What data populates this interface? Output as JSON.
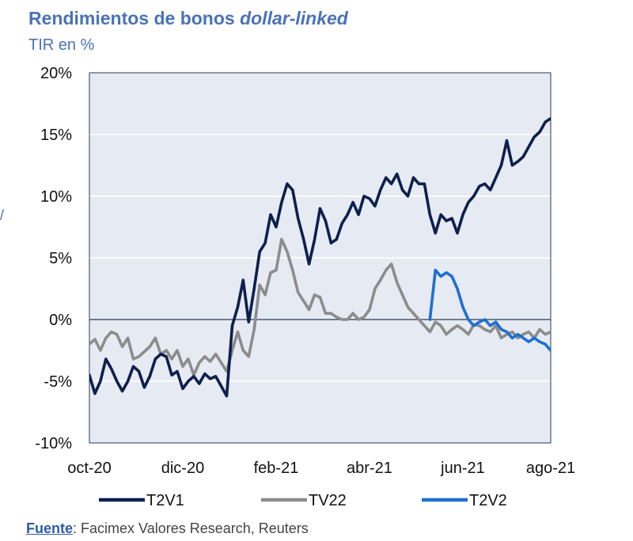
{
  "header": {
    "title_main": "Rendimientos de bonos ",
    "title_italic": "dollar-linked",
    "subtitle": "TIR en %",
    "side_mark": "/"
  },
  "source": {
    "label": "Fuente",
    "text": ": Facimex Valores Research, Reuters"
  },
  "chart_data": {
    "type": "line",
    "title": "Rendimientos de bonos dollar-linked",
    "ylabel": "TIR en %",
    "xlabel": "",
    "ylim": [
      -10,
      20
    ],
    "xlim": [
      0,
      42
    ],
    "y_ticks": [
      -10,
      -5,
      0,
      5,
      10,
      15,
      20
    ],
    "y_tick_labels": [
      "-10%",
      "-5%",
      "0%",
      "5%",
      "10%",
      "15%",
      "20%"
    ],
    "x_ticks": [
      0,
      8.5,
      17,
      25.5,
      34,
      42
    ],
    "x_tick_labels": [
      "oct-20",
      "dic-20",
      "feb-21",
      "abr-21",
      "jun-21",
      "ago-21"
    ],
    "x_unit": "weeks since oct-20",
    "grid": true,
    "legend_position": "bottom",
    "colors": {
      "plot_bg": "#e6eaf2",
      "grid": "#ffffff",
      "zero_line": "#2b3a55",
      "axis_text": "#111111"
    },
    "series": [
      {
        "name": "T2V1",
        "color": "#0d1f4d",
        "x": [
          0,
          0.5,
          1,
          1.5,
          2,
          2.5,
          3,
          3.5,
          4,
          4.5,
          5,
          5.5,
          6,
          6.5,
          7,
          7.5,
          8,
          8.5,
          9,
          9.5,
          10,
          10.5,
          11,
          11.5,
          12,
          12.5,
          13,
          13.5,
          14,
          14.5,
          15,
          15.5,
          16,
          16.5,
          17,
          17.5,
          18,
          18.5,
          19,
          19.5,
          20,
          20.5,
          21,
          21.5,
          22,
          22.5,
          23,
          23.5,
          24,
          24.5,
          25,
          25.5,
          26,
          26.5,
          27,
          27.5,
          28,
          28.5,
          29,
          29.5,
          30,
          30.5,
          31,
          31.5,
          32,
          32.5,
          33,
          33.5,
          34,
          34.5,
          35,
          35.5,
          36,
          36.5,
          37,
          37.5,
          38,
          38.5,
          39,
          39.5,
          40,
          40.5,
          41,
          41.5,
          42
        ],
        "values": [
          -4.5,
          -6,
          -5,
          -3.2,
          -4,
          -5,
          -5.8,
          -5,
          -3.8,
          -4.2,
          -5.5,
          -4.6,
          -3.2,
          -2.8,
          -3,
          -4.5,
          -4.2,
          -5.6,
          -5,
          -4.6,
          -5.2,
          -4.4,
          -4.8,
          -4.6,
          -5.4,
          -6.2,
          -0.5,
          1,
          3.2,
          -0.2,
          2.5,
          5.5,
          6.2,
          8.5,
          7.5,
          9.5,
          11,
          10.5,
          8.2,
          6.5,
          4.5,
          6.5,
          9,
          8,
          6.2,
          6.5,
          7.8,
          8.5,
          9.5,
          8.5,
          10,
          9.8,
          9.2,
          10.5,
          11.5,
          11,
          11.8,
          10.5,
          10,
          11.5,
          11,
          11,
          8.5,
          7,
          8.5,
          8,
          8.2,
          7,
          8.5,
          9.5,
          10,
          10.8,
          11,
          10.5,
          11.5,
          12.5,
          14.5,
          12.5,
          12.8,
          13.2,
          14,
          14.8,
          15.2,
          16,
          16.3
        ]
      },
      {
        "name": "TV22",
        "color": "#8c8c8c",
        "x": [
          0,
          0.5,
          1,
          1.5,
          2,
          2.5,
          3,
          3.5,
          4,
          4.5,
          5,
          5.5,
          6,
          6.5,
          7,
          7.5,
          8,
          8.5,
          9,
          9.5,
          10,
          10.5,
          11,
          11.5,
          12,
          12.5,
          13,
          13.5,
          14,
          14.5,
          15,
          15.5,
          16,
          16.5,
          17,
          17.5,
          18,
          18.5,
          19,
          19.5,
          20,
          20.5,
          21,
          21.5,
          22,
          22.5,
          23,
          23.5,
          24,
          24.5,
          25,
          25.5,
          26,
          26.5,
          27,
          27.5,
          28,
          28.5,
          29,
          29.5,
          30,
          30.5,
          31,
          31.5,
          32,
          32.5,
          33,
          33.5,
          34,
          34.5,
          35,
          35.5,
          36,
          36.5,
          37,
          37.5,
          38,
          38.5,
          39,
          39.5,
          40,
          40.5,
          41,
          41.5,
          42
        ],
        "values": [
          -2,
          -1.6,
          -2.5,
          -1.5,
          -1,
          -1.2,
          -2.2,
          -1.5,
          -3.2,
          -3,
          -2.6,
          -2.2,
          -1.5,
          -2.8,
          -2.5,
          -3.2,
          -2.5,
          -3.8,
          -3.2,
          -4.5,
          -3.5,
          -3,
          -3.4,
          -2.8,
          -3.5,
          -4.2,
          -2.5,
          -1,
          -2.5,
          -3,
          -0.8,
          2.8,
          2,
          3.8,
          4,
          6.5,
          5.5,
          4,
          2.2,
          1.5,
          0.8,
          2,
          1.8,
          0.5,
          0.5,
          0.2,
          0,
          0,
          0.5,
          0,
          0.2,
          0.8,
          2.5,
          3.2,
          4,
          4.5,
          3,
          2,
          1,
          0.5,
          0,
          -0.5,
          -1,
          -0.2,
          -0.5,
          -1.2,
          -0.8,
          -0.5,
          -0.8,
          -1.2,
          -0.4,
          -0.5,
          -0.8,
          -1,
          -0.5,
          -1.5,
          -1.2,
          -1,
          -1.5,
          -1.2,
          -1,
          -1.5,
          -0.8,
          -1.2,
          -1
        ]
      },
      {
        "name": "T2V2",
        "color": "#1f6fd1",
        "x": [
          31,
          31.5,
          32,
          32.5,
          33,
          33.5,
          34,
          34.5,
          35,
          35.5,
          36,
          36.5,
          37,
          37.5,
          38,
          38.5,
          39,
          39.5,
          40,
          40.5,
          41,
          41.5,
          42
        ],
        "values": [
          0,
          4,
          3.5,
          3.8,
          3.5,
          2.5,
          1,
          0,
          -0.5,
          -0.2,
          0,
          -0.5,
          -0.2,
          -0.8,
          -1,
          -1.5,
          -1.2,
          -1.5,
          -1.8,
          -1.5,
          -1.8,
          -2,
          -2.5
        ]
      }
    ]
  }
}
